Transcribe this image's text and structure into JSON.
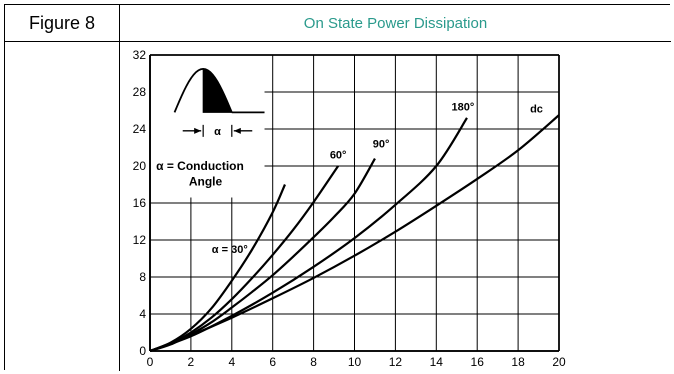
{
  "figure": {
    "label": "Figure 8",
    "title": "On State Power Dissipation"
  },
  "chart_data": {
    "type": "line",
    "title": "On State Power Dissipation",
    "xlabel": "",
    "ylabel": "",
    "xlim": [
      0,
      20
    ],
    "ylim": [
      0,
      32
    ],
    "x_ticks": [
      0,
      2,
      4,
      6,
      8,
      10,
      12,
      14,
      16,
      18,
      20
    ],
    "y_ticks": [
      0,
      4,
      8,
      12,
      16,
      20,
      24,
      28,
      32
    ],
    "grid": true,
    "series": [
      {
        "name": "α = 30°",
        "label": "α = 30°",
        "x": [
          0,
          1,
          2,
          3,
          4,
          5,
          6,
          6.6
        ],
        "y": [
          0,
          0.9,
          2.4,
          4.6,
          7.6,
          11.0,
          15.0,
          18.0
        ]
      },
      {
        "name": "60°",
        "label": "60°",
        "x": [
          0,
          1,
          2,
          3,
          4,
          5,
          6,
          7,
          8,
          9.2
        ],
        "y": [
          0,
          0.8,
          2.0,
          3.6,
          5.6,
          7.9,
          10.4,
          13.1,
          16.1,
          20.0
        ]
      },
      {
        "name": "90°",
        "label": "90°",
        "x": [
          0,
          1,
          2,
          3,
          4,
          5,
          6,
          7,
          8,
          9,
          10,
          11
        ],
        "y": [
          0,
          0.7,
          1.8,
          3.1,
          4.7,
          6.4,
          8.2,
          10.2,
          12.3,
          14.5,
          17.0,
          20.8
        ]
      },
      {
        "name": "180°",
        "label": "180°",
        "x": [
          0,
          2,
          4,
          6,
          8,
          10,
          12,
          14,
          15.5
        ],
        "y": [
          0,
          1.6,
          3.8,
          6.3,
          9.1,
          12.2,
          15.8,
          20.0,
          25.2
        ]
      },
      {
        "name": "dc",
        "label": "dc",
        "x": [
          0,
          2,
          4,
          6,
          8,
          10,
          12,
          14,
          16,
          18,
          20
        ],
        "y": [
          0,
          1.7,
          3.6,
          5.7,
          7.9,
          10.3,
          12.9,
          15.7,
          18.6,
          21.7,
          25.5
        ]
      }
    ],
    "annotations": {
      "conduction_line1": "α = Conduction",
      "conduction_line2": "Angle",
      "alpha_symbol": "α"
    }
  }
}
